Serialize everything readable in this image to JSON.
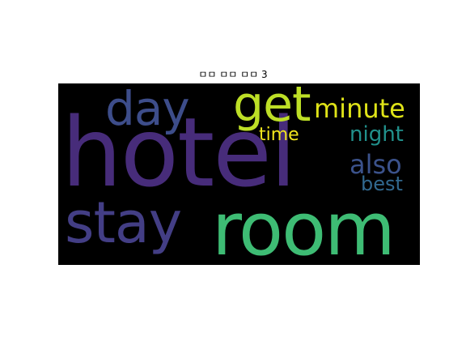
{
  "figure": {
    "title": "ㅁㅁ ㅁㅁ ㅁㅁ 3"
  },
  "wordcloud": {
    "background": "#000000",
    "words": [
      {
        "key": "hotel",
        "text": "hotel",
        "color": "#472c7a"
      },
      {
        "key": "room",
        "text": "room",
        "color": "#3ebc74"
      },
      {
        "key": "stay",
        "text": "stay",
        "color": "#433e85"
      },
      {
        "key": "day",
        "text": "day",
        "color": "#3d4d8a"
      },
      {
        "key": "get",
        "text": "get",
        "color": "#bddf26"
      },
      {
        "key": "minute",
        "text": "minute",
        "color": "#dfe318"
      },
      {
        "key": "night",
        "text": "night",
        "color": "#21918c"
      },
      {
        "key": "time",
        "text": "time",
        "color": "#f1e51d"
      },
      {
        "key": "also",
        "text": "also",
        "color": "#3b528b"
      },
      {
        "key": "best",
        "text": "best",
        "color": "#31688e"
      }
    ]
  }
}
